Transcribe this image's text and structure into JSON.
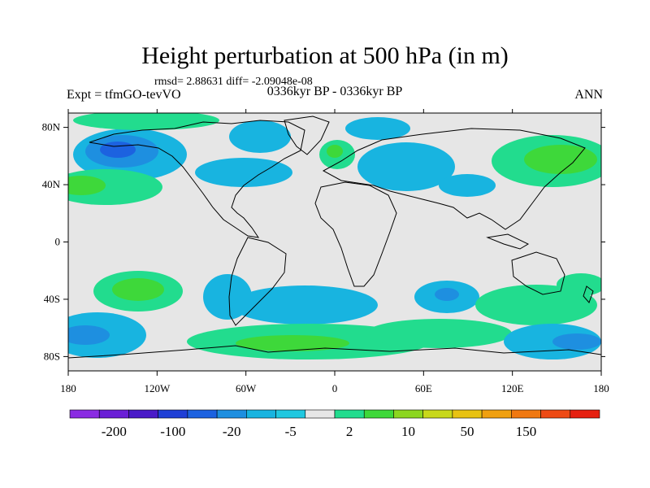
{
  "title": "Height perturbation at 500 hPa (in m)",
  "stats_line": "rmsd= 2.88631  diff= -2.09048e-08",
  "experiment": "Expt = tfmGO-tevVO",
  "period": "0336kyr BP - 0336kyr BP",
  "season": "ANN",
  "lon_labels": [
    "180",
    "120W",
    "60W",
    "0",
    "60E",
    "120E",
    "180"
  ],
  "lat_labels": [
    "80N",
    "40N",
    "0",
    "40S",
    "80S"
  ],
  "colorbar": {
    "labels": [
      "-200",
      "-100",
      "-20",
      "-5",
      "2",
      "10",
      "50",
      "150"
    ],
    "colors": [
      "#8a2be2",
      "#6a1fd6",
      "#4a1ac8",
      "#1f3fd6",
      "#1c62e0",
      "#1e8fe0",
      "#18b4e0",
      "#20c8e0",
      "#e6e6e6",
      "#22dc8e",
      "#3ed83a",
      "#8cd620",
      "#c8d81a",
      "#e8c212",
      "#f0a010",
      "#f07810",
      "#ee4a14",
      "#e62010"
    ]
  }
}
